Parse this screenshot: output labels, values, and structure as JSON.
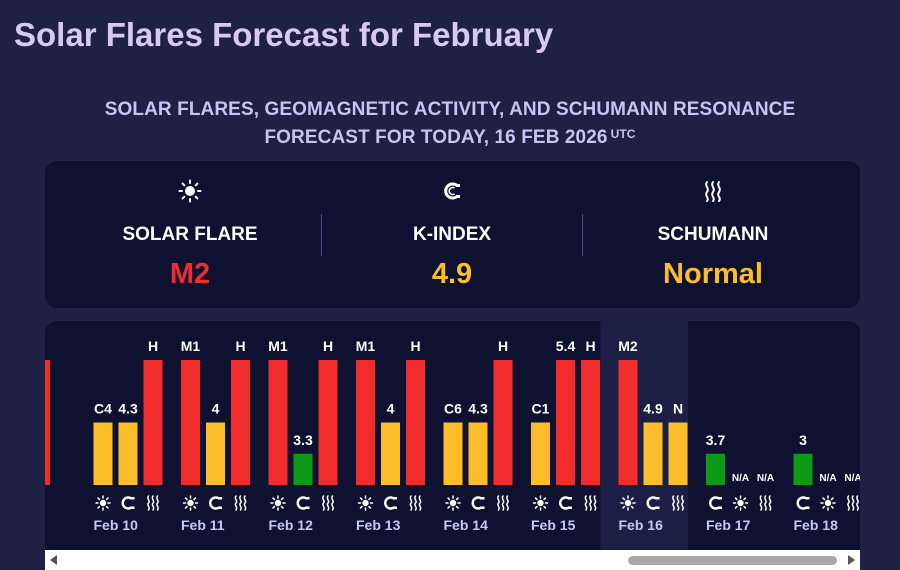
{
  "page_title": "Solar Flares Forecast for February",
  "subtitle_line1": "SOLAR FLARES, GEOMAGNETIC ACTIVITY, AND SCHUMANN RESONANCE",
  "subtitle_line2": "FORECAST FOR TODAY, 16 FEB 2026",
  "subtitle_sup": "UTC",
  "summary": {
    "solar_flare": {
      "label": "SOLAR FLARE",
      "value": "M2",
      "icon": "sun-icon",
      "color": "#f12c2c"
    },
    "k_index": {
      "label": "K-INDEX",
      "value": "4.9",
      "icon": "magnet-icon",
      "color": "#fbbd2a"
    },
    "schumann": {
      "label": "SCHUMANN",
      "value": "Normal",
      "icon": "waves-icon",
      "color": "#fbbd2a"
    }
  },
  "colors": {
    "red": "#f12c2c",
    "yellow": "#fbbd2a",
    "green": "#0c9a17",
    "label": "#c4c8f5",
    "today_bg": "#1c1f45"
  },
  "chart_data": {
    "type": "bar",
    "today": "Feb 16",
    "days": [
      {
        "date": "",
        "partial": true,
        "bars": [
          {
            "kind": "flare",
            "label": "",
            "level": 1.0,
            "color": "red"
          }
        ]
      },
      {
        "date": "Feb 10",
        "bars": [
          {
            "kind": "flare",
            "label": "C4",
            "level": 0.5,
            "color": "yellow"
          },
          {
            "kind": "kindex",
            "label": "4.3",
            "level": 0.5,
            "color": "yellow"
          },
          {
            "kind": "schumann",
            "label": "H",
            "level": 1.0,
            "color": "red"
          }
        ]
      },
      {
        "date": "Feb 11",
        "bars": [
          {
            "kind": "flare",
            "label": "M1",
            "level": 1.0,
            "color": "red"
          },
          {
            "kind": "kindex",
            "label": "4",
            "level": 0.5,
            "color": "yellow"
          },
          {
            "kind": "schumann",
            "label": "H",
            "level": 1.0,
            "color": "red"
          }
        ]
      },
      {
        "date": "Feb 12",
        "bars": [
          {
            "kind": "flare",
            "label": "M1",
            "level": 1.0,
            "color": "red"
          },
          {
            "kind": "kindex",
            "label": "3.3",
            "level": 0.25,
            "color": "green"
          },
          {
            "kind": "schumann",
            "label": "H",
            "level": 1.0,
            "color": "red"
          }
        ]
      },
      {
        "date": "Feb 13",
        "bars": [
          {
            "kind": "flare",
            "label": "M1",
            "level": 1.0,
            "color": "red"
          },
          {
            "kind": "kindex",
            "label": "4",
            "level": 0.5,
            "color": "yellow"
          },
          {
            "kind": "schumann",
            "label": "H",
            "level": 1.0,
            "color": "red"
          }
        ]
      },
      {
        "date": "Feb 14",
        "bars": [
          {
            "kind": "flare",
            "label": "C6",
            "level": 0.5,
            "color": "yellow"
          },
          {
            "kind": "kindex",
            "label": "4.3",
            "level": 0.5,
            "color": "yellow"
          },
          {
            "kind": "schumann",
            "label": "H",
            "level": 1.0,
            "color": "red"
          }
        ]
      },
      {
        "date": "Feb 15",
        "bars": [
          {
            "kind": "flare",
            "label": "C1",
            "level": 0.5,
            "color": "yellow"
          },
          {
            "kind": "kindex",
            "label": "5.4",
            "level": 1.0,
            "color": "red"
          },
          {
            "kind": "schumann",
            "label": "H",
            "level": 1.0,
            "color": "red"
          }
        ]
      },
      {
        "date": "Feb 16",
        "bars": [
          {
            "kind": "flare",
            "label": "M2",
            "level": 1.0,
            "color": "red"
          },
          {
            "kind": "kindex",
            "label": "4.9",
            "level": 0.5,
            "color": "yellow"
          },
          {
            "kind": "schumann",
            "label": "N",
            "level": 0.5,
            "color": "yellow"
          }
        ]
      },
      {
        "date": "Feb 17",
        "bars": [
          {
            "kind": "kindex",
            "label": "3.7",
            "level": 0.25,
            "color": "green"
          },
          {
            "kind": "flare",
            "label": "N/A",
            "level": 0,
            "color": "none"
          },
          {
            "kind": "schumann",
            "label": "N/A",
            "level": 0,
            "color": "none"
          }
        ]
      },
      {
        "date": "Feb 18",
        "bars": [
          {
            "kind": "kindex",
            "label": "3",
            "level": 0.25,
            "color": "green"
          },
          {
            "kind": "flare",
            "label": "N/A",
            "level": 0,
            "color": "none"
          },
          {
            "kind": "schumann",
            "label": "N/A",
            "level": 0,
            "color": "none"
          }
        ]
      }
    ]
  }
}
